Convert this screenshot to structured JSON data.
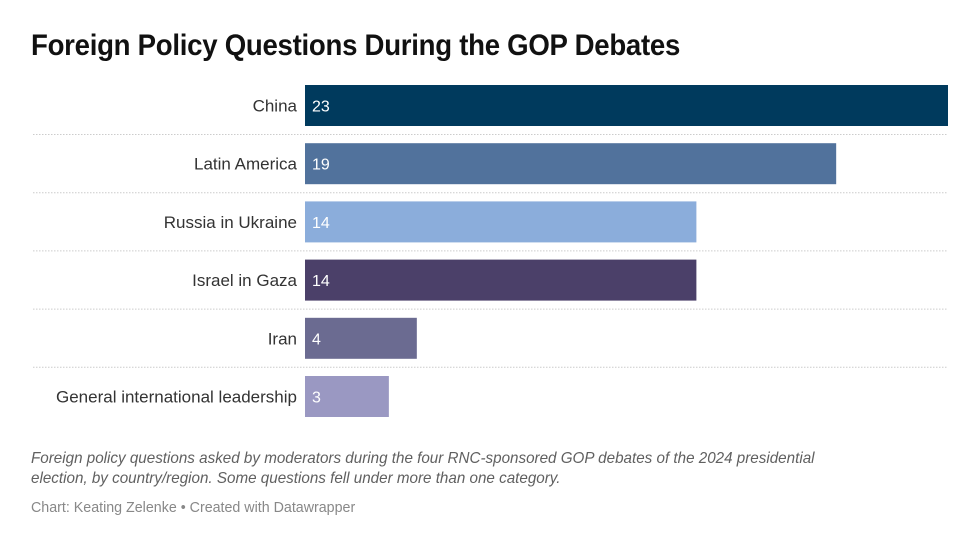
{
  "chart_data": {
    "type": "bar",
    "orientation": "horizontal",
    "title": "Foreign Policy Questions During the GOP Debates",
    "categories": [
      "China",
      "Latin America",
      "Russia in Ukraine",
      "Israel in Gaza",
      "Iran",
      "General international leadership"
    ],
    "values": [
      23,
      19,
      14,
      14,
      4,
      3
    ],
    "colors": [
      "#003A5D",
      "#51729C",
      "#8BADDB",
      "#4B4069",
      "#6B6B91",
      "#9A98C2"
    ],
    "value_label_color": "#ffffff",
    "xlabel": "",
    "ylabel": "",
    "xlim": [
      0,
      23
    ],
    "grid": false,
    "row_separators": "dotted",
    "legend": "none"
  },
  "notes": "Foreign policy questions asked by moderators during the four RNC-sponsored GOP debates of the 2024 presidential election, by country/region. Some questions fell under more than one category.",
  "source": "Chart: Keating Zelenke • Created with Datawrapper"
}
